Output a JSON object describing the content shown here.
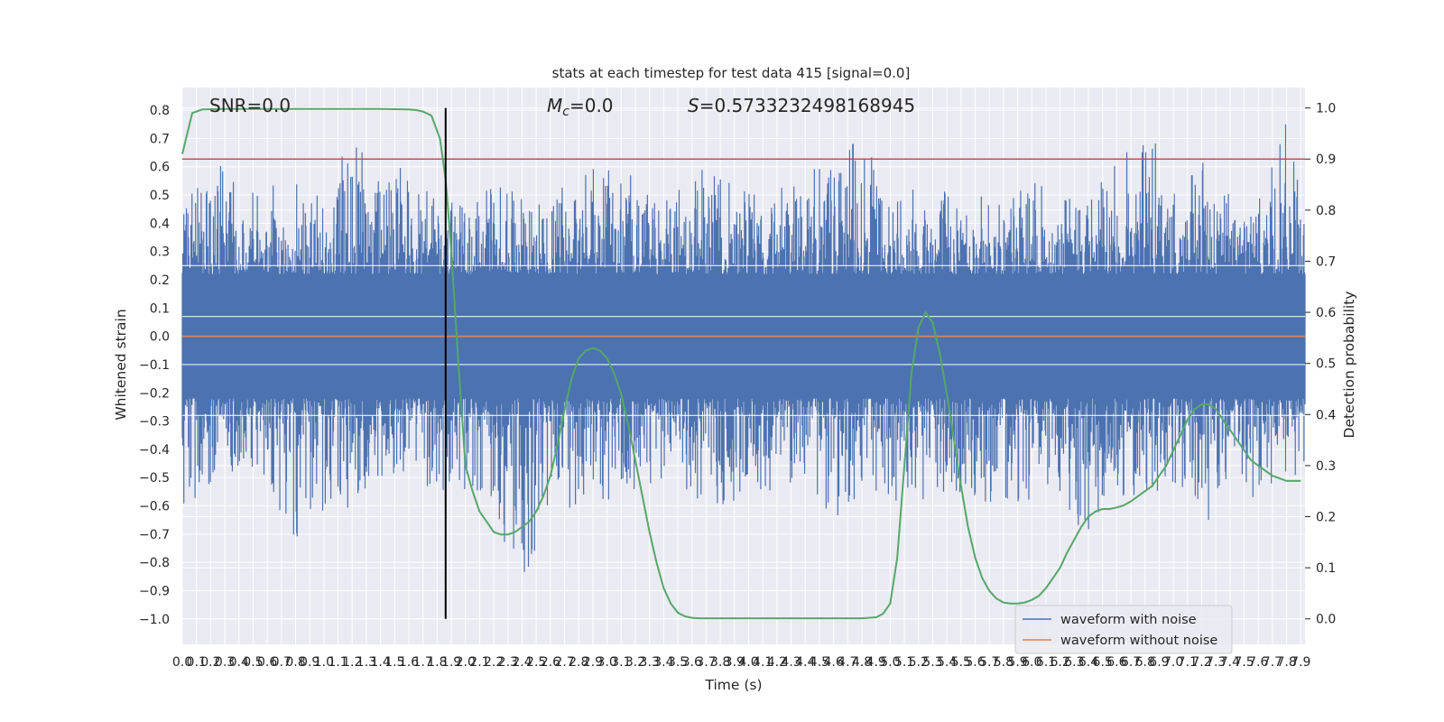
{
  "chart_data": {
    "type": "line",
    "title": "stats at each timestep for test data 415 [signal=0.0]",
    "xlabel": "Time (s)",
    "ylabel": "Whitened strain",
    "y2label": "Detection probability",
    "xlim": [
      0,
      7.93
    ],
    "ylim": [
      -1.09,
      0.88
    ],
    "y2lim": [
      -0.05,
      1.04
    ],
    "grid": true,
    "legend_position": "bottom-right",
    "colors": {
      "background": "#eaeaf2",
      "grid": "#ffffff",
      "noisy": "#4c72b0",
      "clean": "#dd8452",
      "prob": "#55a868",
      "threshold": "#c44e52",
      "marker": "#000000",
      "text": "#262626"
    },
    "annotations": {
      "snr": "SNR=0.0",
      "mc_symbol": "M",
      "mc_subscript": "c",
      "mc_value": "=0.0",
      "s_symbol": "S",
      "s_value": "=0.5733232498168945"
    },
    "x_ticks": [
      "0.0",
      "0.1",
      "0.2",
      "0.3",
      "0.4",
      "0.5",
      "0.6",
      "0.7",
      "0.8",
      "0.9",
      "1.0",
      "1.1",
      "1.2",
      "1.3",
      "1.4",
      "1.5",
      "1.6",
      "1.7",
      "1.8",
      "1.9",
      "2.0",
      "2.1",
      "2.2",
      "2.3",
      "2.4",
      "2.5",
      "2.6",
      "2.7",
      "2.8",
      "2.9",
      "3.0",
      "3.1",
      "3.2",
      "3.3",
      "3.4",
      "3.5",
      "3.6",
      "3.7",
      "3.8",
      "3.9",
      "4.0",
      "4.1",
      "4.2",
      "4.3",
      "4.4",
      "4.5",
      "4.6",
      "4.7",
      "4.8",
      "4.9",
      "5.0",
      "5.1",
      "5.2",
      "5.3",
      "5.4",
      "5.5",
      "5.6",
      "5.7",
      "5.8",
      "5.9",
      "6.0",
      "6.1",
      "6.2",
      "6.3",
      "6.4",
      "6.5",
      "6.6",
      "6.7",
      "6.8",
      "6.9",
      "7.0",
      "7.1",
      "7.2",
      "7.3",
      "7.4",
      "7.5",
      "7.6",
      "7.7",
      "7.8",
      "7.9"
    ],
    "y_ticks": [
      "0.8",
      "0.7",
      "0.6",
      "0.5",
      "0.4",
      "0.3",
      "0.2",
      "0.1",
      "0.0",
      "−0.1",
      "−0.2",
      "−0.3",
      "−0.4",
      "−0.5",
      "−0.6",
      "−0.7",
      "−0.8",
      "−0.9",
      "−1.0"
    ],
    "y2_ticks": [
      "1.0",
      "0.9",
      "0.8",
      "0.7",
      "0.6",
      "0.5",
      "0.4",
      "0.3",
      "0.2",
      "0.1",
      "0.0"
    ],
    "threshold_prob": 0.9,
    "marker_time": 1.86,
    "series": [
      {
        "name": "waveform with noise",
        "note": "dense noise samples; envelope per time bin",
        "x": [
          0.0,
          0.2,
          0.4,
          0.6,
          0.8,
          1.0,
          1.2,
          1.4,
          1.6,
          1.8,
          2.0,
          2.2,
          2.4,
          2.6,
          2.8,
          3.0,
          3.2,
          3.4,
          3.6,
          3.8,
          4.0,
          4.2,
          4.4,
          4.6,
          4.8,
          5.0,
          5.2,
          5.4,
          5.6,
          5.8,
          6.0,
          6.2,
          6.4,
          6.6,
          6.8,
          7.0,
          7.2,
          7.4,
          7.6,
          7.8,
          7.93
        ],
        "y_max": [
          0.47,
          0.64,
          0.55,
          0.55,
          0.58,
          0.5,
          0.72,
          0.58,
          0.62,
          0.5,
          0.48,
          0.55,
          0.52,
          0.48,
          0.63,
          0.6,
          0.58,
          0.5,
          0.6,
          0.58,
          0.52,
          0.6,
          0.58,
          0.65,
          0.7,
          0.52,
          0.6,
          0.55,
          0.5,
          0.5,
          0.55,
          0.5,
          0.52,
          0.62,
          0.79,
          0.5,
          0.62,
          0.55,
          0.48,
          0.76,
          0.42
        ],
        "y_min": [
          -0.63,
          -0.52,
          -0.55,
          -0.5,
          -0.77,
          -0.65,
          -0.61,
          -0.5,
          -0.5,
          -0.55,
          -0.55,
          -0.62,
          -1.0,
          -0.6,
          -0.71,
          -0.6,
          -0.55,
          -0.5,
          -0.57,
          -0.6,
          -0.58,
          -0.55,
          -0.5,
          -0.67,
          -0.55,
          -0.58,
          -0.62,
          -0.64,
          -0.6,
          -0.58,
          -0.6,
          -0.55,
          -0.74,
          -0.6,
          -0.55,
          -0.6,
          -0.72,
          -0.5,
          -0.69,
          -0.55,
          -0.51
        ]
      },
      {
        "name": "waveform without noise",
        "x": [
          0.0,
          7.93
        ],
        "y": [
          0.0,
          0.0
        ]
      },
      {
        "name": "Detection probability",
        "axis": "right",
        "x": [
          0.0,
          0.07,
          0.14,
          0.3,
          0.6,
          1.0,
          1.4,
          1.6,
          1.65,
          1.7,
          1.76,
          1.82,
          1.86,
          1.9,
          1.95,
          2.0,
          2.05,
          2.1,
          2.15,
          2.2,
          2.25,
          2.3,
          2.35,
          2.4,
          2.45,
          2.5,
          2.55,
          2.6,
          2.65,
          2.7,
          2.75,
          2.8,
          2.85,
          2.9,
          2.95,
          3.0,
          3.05,
          3.1,
          3.15,
          3.2,
          3.25,
          3.3,
          3.35,
          3.4,
          3.45,
          3.5,
          3.55,
          3.6,
          3.65,
          3.7,
          3.8,
          4.0,
          4.4,
          4.8,
          4.9,
          4.95,
          5.0,
          5.05,
          5.1,
          5.15,
          5.2,
          5.25,
          5.3,
          5.35,
          5.4,
          5.45,
          5.5,
          5.55,
          5.6,
          5.65,
          5.7,
          5.75,
          5.8,
          5.85,
          5.9,
          5.95,
          6.0,
          6.05,
          6.1,
          6.15,
          6.2,
          6.25,
          6.3,
          6.35,
          6.4,
          6.45,
          6.5,
          6.55,
          6.6,
          6.65,
          6.7,
          6.75,
          6.8,
          6.85,
          6.9,
          6.95,
          7.0,
          7.05,
          7.1,
          7.15,
          7.2,
          7.25,
          7.3,
          7.35,
          7.4,
          7.45,
          7.5,
          7.55,
          7.6,
          7.65,
          7.7,
          7.75,
          7.8,
          7.85,
          7.9
        ],
        "y": [
          0.91,
          0.99,
          0.997,
          0.998,
          0.998,
          0.998,
          0.998,
          0.997,
          0.996,
          0.993,
          0.985,
          0.94,
          0.86,
          0.72,
          0.5,
          0.3,
          0.25,
          0.21,
          0.19,
          0.17,
          0.165,
          0.165,
          0.17,
          0.18,
          0.19,
          0.21,
          0.24,
          0.28,
          0.34,
          0.41,
          0.47,
          0.51,
          0.525,
          0.53,
          0.525,
          0.51,
          0.48,
          0.44,
          0.38,
          0.31,
          0.24,
          0.17,
          0.11,
          0.06,
          0.03,
          0.012,
          0.005,
          0.002,
          0.001,
          0.001,
          0.001,
          0.001,
          0.001,
          0.001,
          0.003,
          0.01,
          0.03,
          0.12,
          0.3,
          0.48,
          0.57,
          0.6,
          0.58,
          0.52,
          0.44,
          0.35,
          0.26,
          0.18,
          0.12,
          0.08,
          0.055,
          0.04,
          0.032,
          0.03,
          0.03,
          0.032,
          0.037,
          0.045,
          0.06,
          0.08,
          0.1,
          0.13,
          0.155,
          0.18,
          0.2,
          0.21,
          0.215,
          0.215,
          0.218,
          0.222,
          0.23,
          0.24,
          0.25,
          0.26,
          0.28,
          0.3,
          0.33,
          0.36,
          0.39,
          0.41,
          0.42,
          0.42,
          0.41,
          0.39,
          0.37,
          0.35,
          0.33,
          0.31,
          0.3,
          0.29,
          0.28,
          0.275,
          0.27,
          0.27,
          0.27
        ]
      }
    ]
  }
}
